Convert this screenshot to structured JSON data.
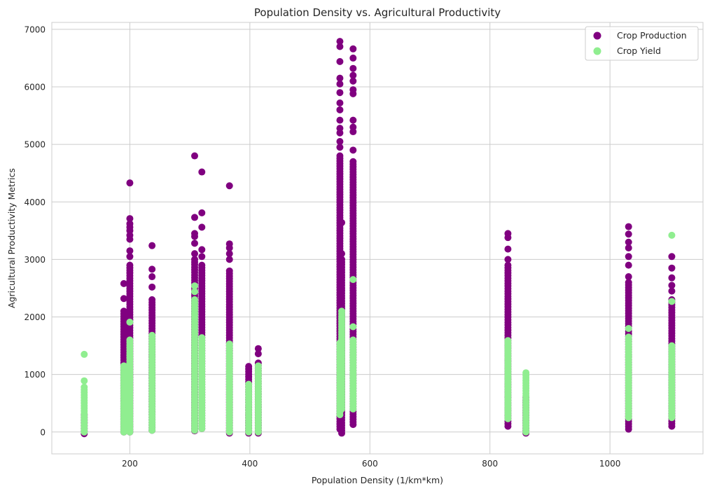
{
  "chart_data": {
    "type": "scatter",
    "title": "Population Density vs. Agricultural Productivity",
    "xlabel": "Population Density (1/km*km)",
    "ylabel": "Agricultural Productivity Metrics",
    "xlim": [
      70,
      1155
    ],
    "ylim": [
      -380,
      7120
    ],
    "xticks": [
      200,
      400,
      600,
      800,
      1000
    ],
    "yticks": [
      0,
      1000,
      2000,
      3000,
      4000,
      5000,
      6000,
      7000
    ],
    "grid": true,
    "legend_position": "top-right",
    "colors": {
      "Crop Production": "#800080",
      "Crop Yield": "#90ee90"
    },
    "series": [
      {
        "name": "Crop Production",
        "color": "#800080",
        "columns": [
          {
            "x": 124,
            "min": -30,
            "max": 300,
            "outliers": []
          },
          {
            "x": 190,
            "min": 0,
            "max": 2100,
            "outliers": [
              2320,
              2580
            ]
          },
          {
            "x": 200,
            "min": 0,
            "max": 2900,
            "outliers": [
              3050,
              3150,
              3350,
              3420,
              3500,
              3560,
              3620,
              3710,
              4330
            ]
          },
          {
            "x": 237,
            "min": 30,
            "max": 2300,
            "outliers": [
              2520,
              2700,
              2830,
              3240
            ]
          },
          {
            "x": 308,
            "min": 20,
            "max": 3000,
            "outliers": [
              3100,
              3280,
              3400,
              3450,
              3730,
              4800
            ]
          },
          {
            "x": 320,
            "min": 60,
            "max": 2900,
            "outliers": [
              3050,
              3170,
              3560,
              3810,
              4520
            ]
          },
          {
            "x": 366,
            "min": -20,
            "max": 2800,
            "outliers": [
              3000,
              3100,
              3200,
              3270,
              4280
            ]
          },
          {
            "x": 398,
            "min": -20,
            "max": 1140,
            "outliers": []
          },
          {
            "x": 414,
            "min": -20,
            "max": 1200,
            "outliers": [
              1360,
              1450
            ]
          },
          {
            "x": 550,
            "min": 50,
            "max": 4800,
            "outliers": [
              4950,
              5050,
              5200,
              5280,
              5420,
              5600,
              5720,
              5900,
              6050,
              6150,
              6440,
              6700,
              6790
            ]
          },
          {
            "x": 553,
            "min": -20,
            "max": 3000,
            "outliers": [
              3100,
              3640
            ]
          },
          {
            "x": 572,
            "min": 130,
            "max": 4700,
            "outliers": [
              4900,
              5220,
              5300,
              5420,
              5880,
              5950,
              6100,
              6200,
              6320,
              6500,
              6660
            ]
          },
          {
            "x": 830,
            "min": 100,
            "max": 2900,
            "outliers": [
              3000,
              3180,
              3380,
              3450
            ]
          },
          {
            "x": 860,
            "min": -20,
            "max": 600,
            "outliers": []
          },
          {
            "x": 1031,
            "min": 50,
            "max": 2600,
            "outliers": [
              2700,
              2900,
              3050,
              3200,
              3300,
              3440,
              3570
            ]
          },
          {
            "x": 1103,
            "min": 100,
            "max": 2300,
            "outliers": [
              2450,
              2550,
              2680,
              2850,
              3050
            ]
          }
        ]
      },
      {
        "name": "Crop Yield",
        "color": "#90ee90",
        "columns": [
          {
            "x": 124,
            "min": 0,
            "max": 780,
            "outliers": [
              890,
              1350
            ]
          },
          {
            "x": 190,
            "min": 0,
            "max": 1150,
            "outliers": []
          },
          {
            "x": 200,
            "min": 0,
            "max": 1600,
            "outliers": [
              1910
            ]
          },
          {
            "x": 237,
            "min": 30,
            "max": 1680,
            "outliers": []
          },
          {
            "x": 308,
            "min": 30,
            "max": 2300,
            "outliers": [
              2440,
              2540
            ]
          },
          {
            "x": 320,
            "min": 60,
            "max": 1640,
            "outliers": []
          },
          {
            "x": 366,
            "min": 0,
            "max": 1530,
            "outliers": []
          },
          {
            "x": 398,
            "min": 0,
            "max": 830,
            "outliers": []
          },
          {
            "x": 414,
            "min": 0,
            "max": 1150,
            "outliers": []
          },
          {
            "x": 550,
            "min": 300,
            "max": 1550,
            "outliers": []
          },
          {
            "x": 553,
            "min": 400,
            "max": 2100,
            "outliers": []
          },
          {
            "x": 572,
            "min": 400,
            "max": 1600,
            "outliers": [
              1830,
              2650
            ]
          },
          {
            "x": 830,
            "min": 230,
            "max": 1590,
            "outliers": []
          },
          {
            "x": 860,
            "min": 0,
            "max": 1030,
            "outliers": []
          },
          {
            "x": 1031,
            "min": 250,
            "max": 1650,
            "outliers": [
              1800
            ]
          },
          {
            "x": 1103,
            "min": 250,
            "max": 1500,
            "outliers": [
              2270,
              3420
            ]
          }
        ]
      }
    ]
  }
}
